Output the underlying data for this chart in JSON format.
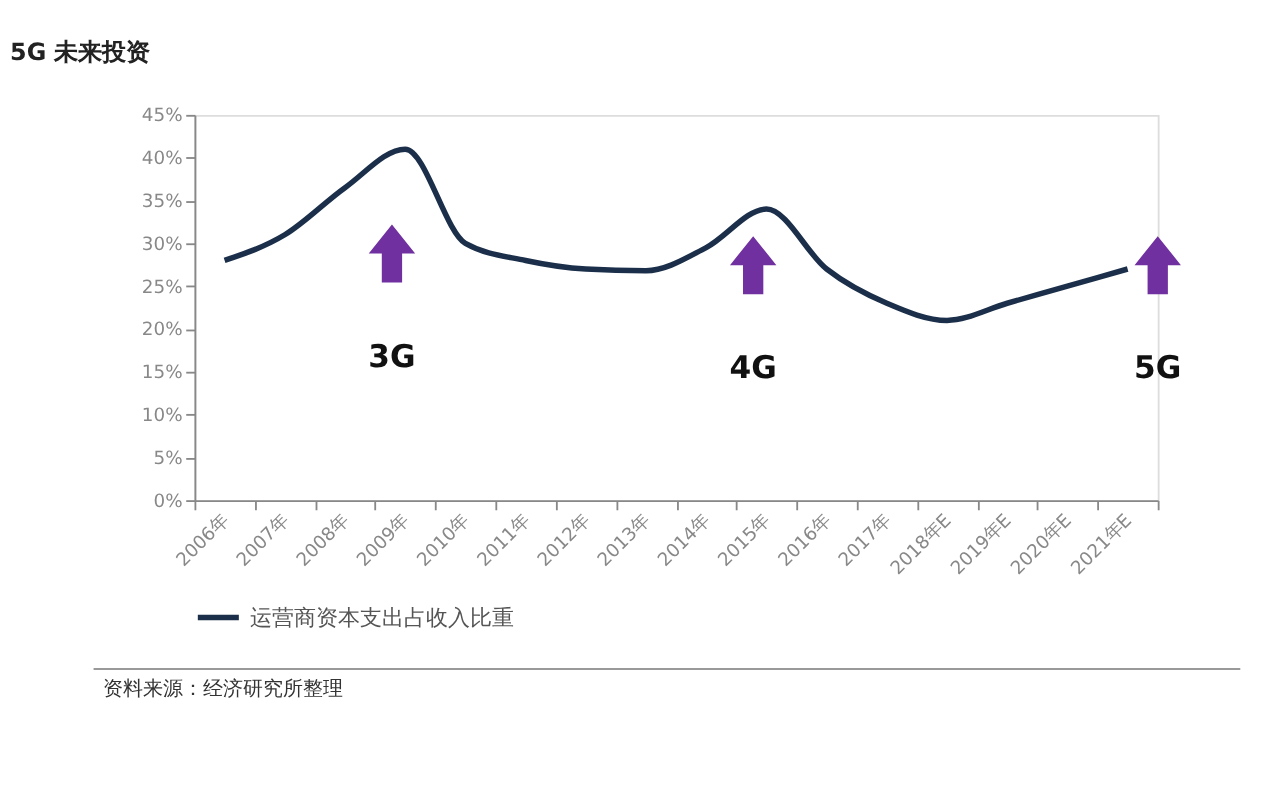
{
  "chart_data": {
    "type": "line",
    "title": "5G 未来投资",
    "categories": [
      "2006年",
      "2007年",
      "2008年",
      "2009年",
      "2010年",
      "2011年",
      "2012年",
      "2013年",
      "2014年",
      "2015年",
      "2016年",
      "2017年",
      "2018年E",
      "2019年E",
      "2020年E",
      "2021年E"
    ],
    "series": [
      {
        "name": "运营商资本支出占收入比重",
        "color": "#1b2f4a",
        "values": [
          28,
          31,
          36.5,
          41,
          30,
          28,
          27,
          26.8,
          29.5,
          34,
          27,
          23,
          21,
          23,
          25,
          27
        ]
      }
    ],
    "ylim": [
      0,
      45
    ],
    "yticks": [
      {
        "value": 0,
        "label": "0%"
      },
      {
        "value": 5,
        "label": "5%"
      },
      {
        "value": 10,
        "label": "10%"
      },
      {
        "value": 15,
        "label": "15%"
      },
      {
        "value": 20,
        "label": "20%"
      },
      {
        "value": 25,
        "label": "25%"
      },
      {
        "value": 30,
        "label": "30%"
      },
      {
        "value": 35,
        "label": "35%"
      },
      {
        "value": 40,
        "label": "40%"
      },
      {
        "value": 45,
        "label": "45%"
      }
    ],
    "annotations": [
      "3G",
      "4G",
      "5G",
      "资料来源：经济研究所整理"
    ],
    "grid": false,
    "legend": "bottom",
    "marker": "none",
    "line_style": "solid"
  }
}
